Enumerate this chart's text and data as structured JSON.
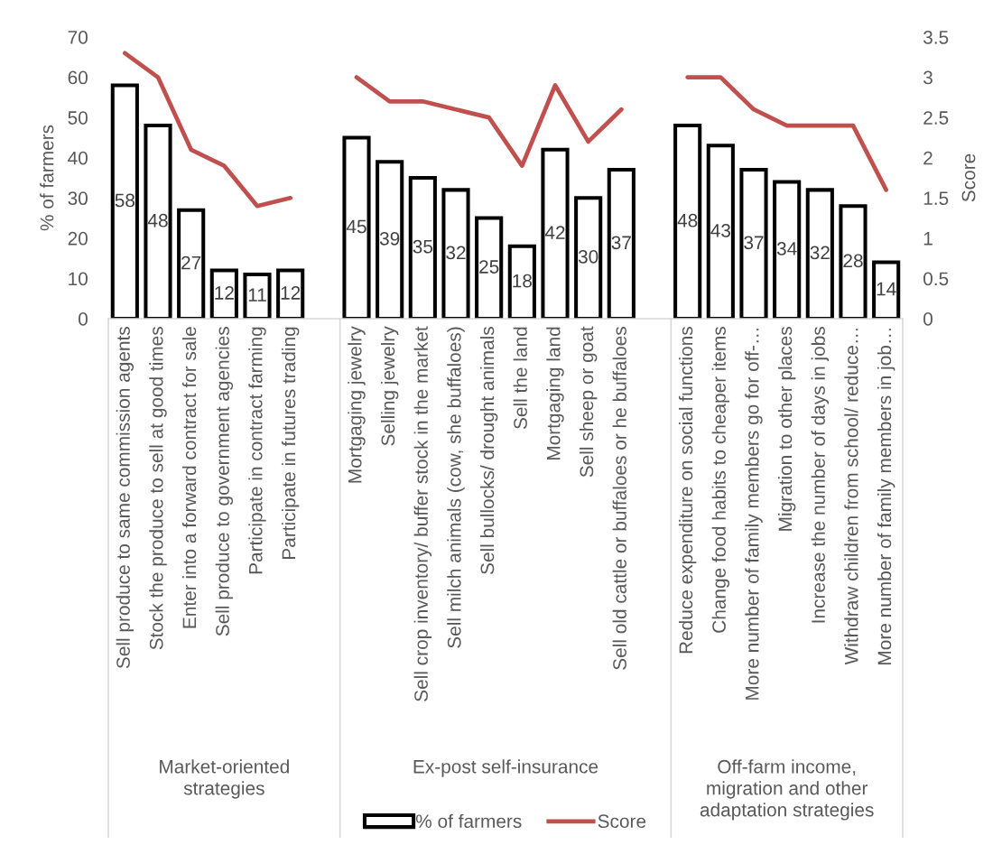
{
  "chart_data": {
    "type": "bar",
    "categories": [
      "Sell produce to same commission agents",
      "Stock the produce to sell at good times",
      "Enter into a forward contract for sale",
      "Sell produce to government agencies",
      "Participate in contract farming",
      "Participate in futures trading",
      null,
      "Mortgaging jewelry",
      "Selling jewelry",
      "Sell crop inventory/ buffer stock in the market",
      "Sell milch animals (cow, she buffaloes)",
      "Sell bullocks/ drought animals",
      "Sell the land",
      "Mortgaging land",
      "Sell sheep or goat",
      "Sell old cattle or buffaloes or he buffaloes",
      null,
      "Reduce expenditure on social functions",
      "Change food habits to cheaper items",
      "More number of family members go for off-…",
      "Migration to other places",
      "Increase the number of days in jobs",
      "Withdraw children from school/ reduce…",
      "More number of family members in job…"
    ],
    "series": [
      {
        "name": "% of farmers",
        "color": "#ffffff",
        "data_labels": true,
        "values": [
          58,
          48,
          27,
          12,
          11,
          12,
          null,
          45,
          39,
          35,
          32,
          25,
          18,
          42,
          30,
          37,
          null,
          48,
          43,
          37,
          34,
          32,
          28,
          14
        ]
      },
      {
        "name": "Score",
        "type": "line",
        "axis": "y2",
        "color": "#c0504d",
        "values": [
          3.3,
          3.0,
          2.1,
          1.9,
          1.4,
          1.5,
          null,
          3.0,
          2.7,
          2.7,
          2.6,
          2.5,
          1.9,
          2.9,
          2.2,
          2.6,
          null,
          3.0,
          3.0,
          2.6,
          2.4,
          2.4,
          2.4,
          1.6
        ]
      }
    ],
    "ylabel": "% of farmers",
    "y2label": "Score",
    "ylim": [
      0,
      70
    ],
    "yticks": [
      0,
      10,
      20,
      30,
      40,
      50,
      60,
      70
    ],
    "y2lim": [
      0,
      3.5
    ],
    "y2ticks": [
      0,
      0.5,
      1,
      1.5,
      2,
      2.5,
      3,
      3.5
    ],
    "annotations": [
      "Market-oriented strategies",
      "Ex-post self-insurance",
      "Off-farm income, migration and other adaptation strategies"
    ],
    "legend": "bottom"
  }
}
